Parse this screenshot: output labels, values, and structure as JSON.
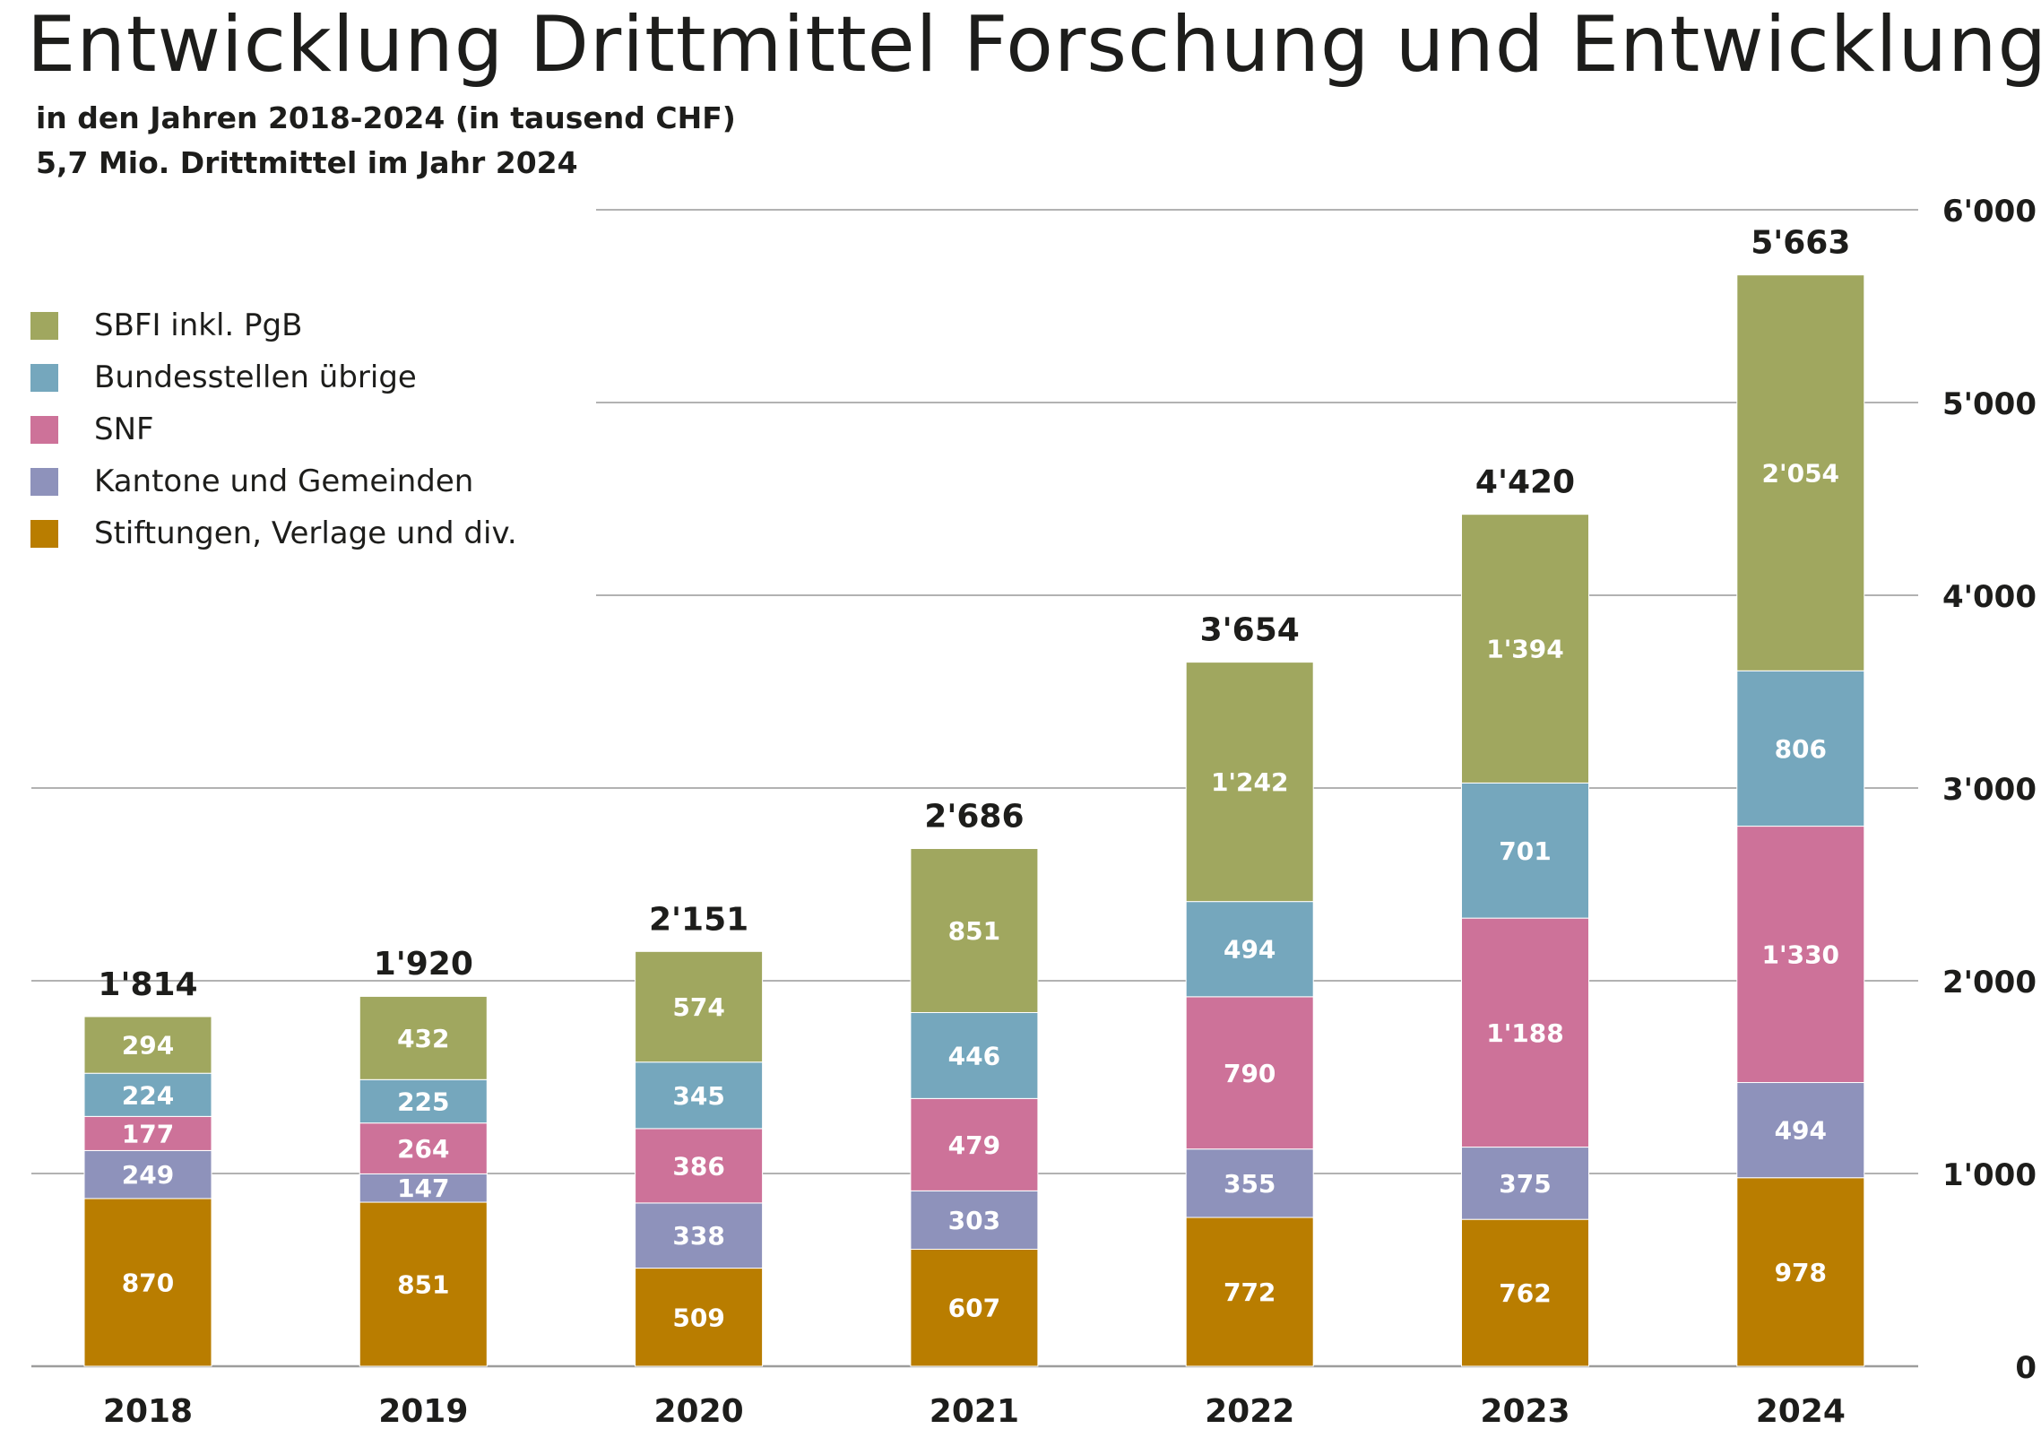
{
  "chart_data": {
    "type": "bar",
    "stacked": true,
    "title": "Entwicklung Drittmittel Forschung und Entwicklung",
    "subtitle_lines": [
      "in den Jahren 2018-2024 (in tausend CHF)",
      "5,7 Mio. Drittmittel im Jahr 2024"
    ],
    "categories": [
      "2018",
      "2019",
      "2020",
      "2021",
      "2022",
      "2023",
      "2024"
    ],
    "series": [
      {
        "name": "Stiftungen, Verlage und div.",
        "color": "#b97d00",
        "values": [
          870,
          851,
          509,
          607,
          772,
          762,
          978
        ]
      },
      {
        "name": "Kantone und Gemeinden",
        "color": "#8e92bb",
        "values": [
          249,
          147,
          338,
          303,
          355,
          375,
          494
        ]
      },
      {
        "name": "SNF",
        "color": "#cd7299",
        "values": [
          177,
          264,
          386,
          479,
          790,
          1188,
          1330
        ]
      },
      {
        "name": "Bundesstellen übrige",
        "color": "#75a7bd",
        "values": [
          224,
          225,
          345,
          446,
          494,
          701,
          806
        ]
      },
      {
        "name": "SBFI inkl. PgB",
        "color": "#a0a75f",
        "values": [
          294,
          432,
          574,
          851,
          1242,
          1394,
          2054
        ]
      }
    ],
    "totals": [
      1814,
      1920,
      2151,
      2686,
      3654,
      4420,
      5663
    ],
    "total_labels": [
      "1'814",
      "1'920",
      "2'151",
      "2'686",
      "3'654",
      "4'420",
      "5'663"
    ],
    "segment_labels": [
      [
        "870",
        "851",
        "509",
        "607",
        "772",
        "762",
        "978"
      ],
      [
        "249",
        "147",
        "338",
        "303",
        "355",
        "375",
        "494"
      ],
      [
        "177",
        "264",
        "386",
        "479",
        "790",
        "1'188",
        "1'330"
      ],
      [
        "224",
        "225",
        "345",
        "446",
        "494",
        "701",
        "806"
      ],
      [
        "294",
        "432",
        "574",
        "851",
        "1'242",
        "1'394",
        "2'054"
      ]
    ],
    "ylim": [
      0,
      6000
    ],
    "yticks": [
      0,
      1000,
      2000,
      3000,
      4000,
      5000,
      6000
    ],
    "ytick_labels": [
      "0",
      "1'000",
      "2'000",
      "3'000",
      "4'000",
      "5'000",
      "6'000"
    ],
    "y_axis_side": "right",
    "grid": true,
    "legend_position": "top-left",
    "legend_order": [
      "SBFI inkl. PgB",
      "Bundesstellen übrige",
      "SNF",
      "Kantone und Gemeinden",
      "Stiftungen, Verlage und div."
    ]
  }
}
